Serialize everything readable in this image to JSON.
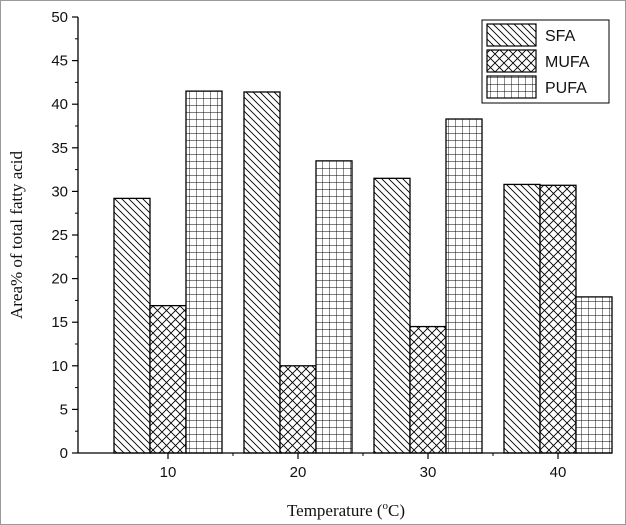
{
  "chart_data": {
    "type": "bar",
    "categories": [
      "10",
      "20",
      "30",
      "40"
    ],
    "series": [
      {
        "name": "SFA",
        "values": [
          29.2,
          41.4,
          31.5,
          30.8
        ],
        "pattern": "diagonal-lines"
      },
      {
        "name": "MUFA",
        "values": [
          16.9,
          10.0,
          14.5,
          30.7
        ],
        "pattern": "crosshatch-diagonal"
      },
      {
        "name": "PUFA",
        "values": [
          41.5,
          33.5,
          38.3,
          17.9
        ],
        "pattern": "grid"
      }
    ],
    "xlabel_text": "Temperature (",
    "xlabel_sup": "o",
    "xlabel_end": "C)",
    "ylabel": "Area% of total fatty acid",
    "ylim": [
      0,
      50
    ],
    "yticks": [
      "0",
      "5",
      "10",
      "15",
      "20",
      "25",
      "30",
      "35",
      "40",
      "45",
      "50"
    ],
    "ytick_values": [
      0,
      5,
      10,
      15,
      20,
      25,
      30,
      35,
      40,
      45,
      50
    ],
    "grid": false,
    "legend_position": "top-right",
    "colors": {
      "bar_stroke": "#000000",
      "bar_fill": "#ffffff",
      "axis": "#000000"
    }
  }
}
